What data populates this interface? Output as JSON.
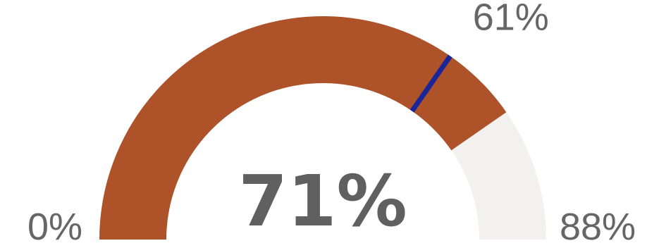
{
  "chart_data": {
    "type": "gauge",
    "value": 71,
    "value_label": "71%",
    "min": 0,
    "min_label": "0%",
    "max": 88,
    "max_label": "88%",
    "target": 61,
    "target_label": "61%",
    "colors": {
      "fill": "#AD5229",
      "track": "#F2F1F0",
      "target": "#1A2599",
      "text": "#666666"
    }
  }
}
